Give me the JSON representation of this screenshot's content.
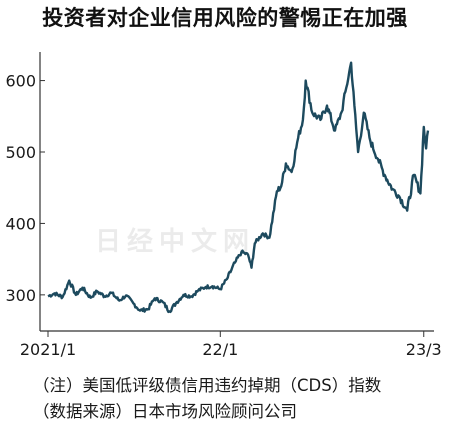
{
  "title": "投资者对企业信用风险的警惕正在加强",
  "notes": {
    "line1": "（注）美国低评级债信用违约掉期（CDS）指数",
    "line2": "（数据来源）日本市场风险顾问公司"
  },
  "watermark": "日经中文网",
  "colors": {
    "line": "#1d4a5e",
    "axis": "#333333",
    "text": "#1a1a1a"
  },
  "chart_data": {
    "type": "line",
    "title": "投资者对企业信用风险的警惕正在加强",
    "xlabel": "",
    "ylabel": "",
    "x_ticks": [
      "2021/1",
      "22/1",
      "23/3"
    ],
    "y_ticks": [
      300,
      400,
      500,
      600
    ],
    "ylim": [
      255,
      640
    ],
    "xlim": [
      "2021-01",
      "2023-03"
    ],
    "grid": false,
    "series": [
      {
        "name": "",
        "x": [
          "2021-01-01",
          "2021-01-15",
          "2021-02-01",
          "2021-02-15",
          "2021-03-01",
          "2021-03-15",
          "2021-04-01",
          "2021-04-15",
          "2021-05-01",
          "2021-05-15",
          "2021-06-01",
          "2021-06-15",
          "2021-07-01",
          "2021-07-15",
          "2021-08-01",
          "2021-08-15",
          "2021-09-01",
          "2021-09-15",
          "2021-10-01",
          "2021-10-15",
          "2021-11-01",
          "2021-11-15",
          "2021-12-01",
          "2021-12-15",
          "2022-01-01",
          "2022-01-15",
          "2022-02-01",
          "2022-02-15",
          "2022-03-01",
          "2022-03-08",
          "2022-03-15",
          "2022-04-01",
          "2022-04-15",
          "2022-05-01",
          "2022-05-10",
          "2022-05-20",
          "2022-06-01",
          "2022-06-15",
          "2022-06-25",
          "2022-07-01",
          "2022-07-15",
          "2022-08-01",
          "2022-08-15",
          "2022-09-01",
          "2022-09-15",
          "2022-09-25",
          "2022-10-05",
          "2022-10-12",
          "2022-10-20",
          "2022-11-01",
          "2022-11-15",
          "2022-12-01",
          "2022-12-15",
          "2023-01-01",
          "2023-01-15",
          "2023-02-01",
          "2023-02-15",
          "2023-03-01",
          "2023-03-08",
          "2023-03-13",
          "2023-03-17"
        ],
        "values": [
          298,
          302,
          297,
          320,
          300,
          310,
          296,
          305,
          298,
          303,
          292,
          299,
          288,
          278,
          280,
          295,
          290,
          277,
          290,
          300,
          298,
          306,
          311,
          312,
          308,
          322,
          345,
          360,
          356,
          338,
          372,
          386,
          380,
          445,
          452,
          484,
          472,
          520,
          545,
          600,
          555,
          545,
          565,
          530,
          556,
          590,
          625,
          565,
          500,
          555,
          515,
          490,
          468,
          448,
          438,
          418,
          468,
          442,
          535,
          505,
          530
        ]
      }
    ]
  }
}
